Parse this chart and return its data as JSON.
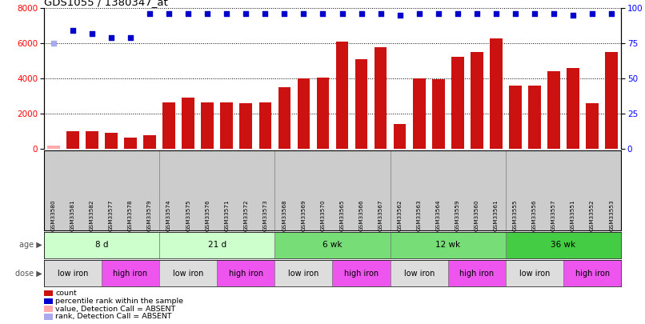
{
  "title": "GDS1055 / 1380347_at",
  "samples": [
    "GSM33580",
    "GSM33581",
    "GSM33582",
    "GSM33577",
    "GSM33578",
    "GSM33579",
    "GSM33574",
    "GSM33575",
    "GSM33576",
    "GSM33571",
    "GSM33572",
    "GSM33573",
    "GSM33568",
    "GSM33569",
    "GSM33570",
    "GSM33565",
    "GSM33566",
    "GSM33567",
    "GSM33562",
    "GSM33563",
    "GSM33564",
    "GSM33559",
    "GSM33560",
    "GSM33561",
    "GSM33555",
    "GSM33556",
    "GSM33557",
    "GSM33551",
    "GSM33552",
    "GSM33553"
  ],
  "counts": [
    200,
    1000,
    1000,
    900,
    650,
    800,
    2650,
    2900,
    2650,
    2650,
    2600,
    2650,
    3500,
    4000,
    4050,
    6100,
    5100,
    5800,
    1400,
    4000,
    3950,
    5250,
    5500,
    6300,
    3600,
    3600,
    4400,
    4600,
    2600,
    5500
  ],
  "percentile_ranks": [
    75,
    84,
    82,
    79,
    79,
    96,
    96,
    96,
    96,
    96,
    96,
    96,
    96,
    96,
    96,
    96,
    96,
    96,
    95,
    96,
    96,
    96,
    96,
    96,
    96,
    96,
    96,
    95,
    96,
    96
  ],
  "absent_bar": [
    true,
    false,
    false,
    false,
    false,
    false,
    false,
    false,
    false,
    false,
    false,
    false,
    false,
    false,
    false,
    false,
    false,
    false,
    false,
    false,
    false,
    false,
    false,
    false,
    false,
    false,
    false,
    false,
    false,
    false
  ],
  "absent_rank": [
    true,
    false,
    false,
    false,
    false,
    false,
    false,
    false,
    false,
    false,
    false,
    false,
    false,
    false,
    false,
    false,
    false,
    false,
    false,
    false,
    false,
    false,
    false,
    false,
    false,
    false,
    false,
    false,
    false,
    false
  ],
  "age_groups": [
    {
      "label": "8 d",
      "start": 0,
      "end": 6,
      "color": "#ccffcc"
    },
    {
      "label": "21 d",
      "start": 6,
      "end": 12,
      "color": "#ccffcc"
    },
    {
      "label": "6 wk",
      "start": 12,
      "end": 18,
      "color": "#77dd77"
    },
    {
      "label": "12 wk",
      "start": 18,
      "end": 24,
      "color": "#77dd77"
    },
    {
      "label": "36 wk",
      "start": 24,
      "end": 30,
      "color": "#44cc44"
    }
  ],
  "dose_groups": [
    {
      "label": "low iron",
      "start": 0,
      "end": 3,
      "color": "#dddddd"
    },
    {
      "label": "high iron",
      "start": 3,
      "end": 6,
      "color": "#ee55ee"
    },
    {
      "label": "low iron",
      "start": 6,
      "end": 9,
      "color": "#dddddd"
    },
    {
      "label": "high iron",
      "start": 9,
      "end": 12,
      "color": "#ee55ee"
    },
    {
      "label": "low iron",
      "start": 12,
      "end": 15,
      "color": "#dddddd"
    },
    {
      "label": "high iron",
      "start": 15,
      "end": 18,
      "color": "#ee55ee"
    },
    {
      "label": "low iron",
      "start": 18,
      "end": 21,
      "color": "#dddddd"
    },
    {
      "label": "high iron",
      "start": 21,
      "end": 24,
      "color": "#ee55ee"
    },
    {
      "label": "low iron",
      "start": 24,
      "end": 27,
      "color": "#dddddd"
    },
    {
      "label": "high iron",
      "start": 27,
      "end": 30,
      "color": "#ee55ee"
    }
  ],
  "bar_color": "#cc1111",
  "absent_bar_color": "#ffaaaa",
  "blue_color": "#0000cc",
  "absent_dot_color": "#aaaaee",
  "xlabels_bgcolor": "#cccccc",
  "ylim_left": [
    0,
    8000
  ],
  "ylim_right": [
    0,
    100
  ],
  "yticks_left": [
    0,
    2000,
    4000,
    6000,
    8000
  ],
  "yticks_right": [
    0,
    25,
    50,
    75,
    100
  ],
  "legend_items": [
    {
      "color": "#cc1111",
      "label": "count"
    },
    {
      "color": "#0000cc",
      "label": "percentile rank within the sample"
    },
    {
      "color": "#ffaaaa",
      "label": "value, Detection Call = ABSENT"
    },
    {
      "color": "#aaaaee",
      "label": "rank, Detection Call = ABSENT"
    }
  ]
}
